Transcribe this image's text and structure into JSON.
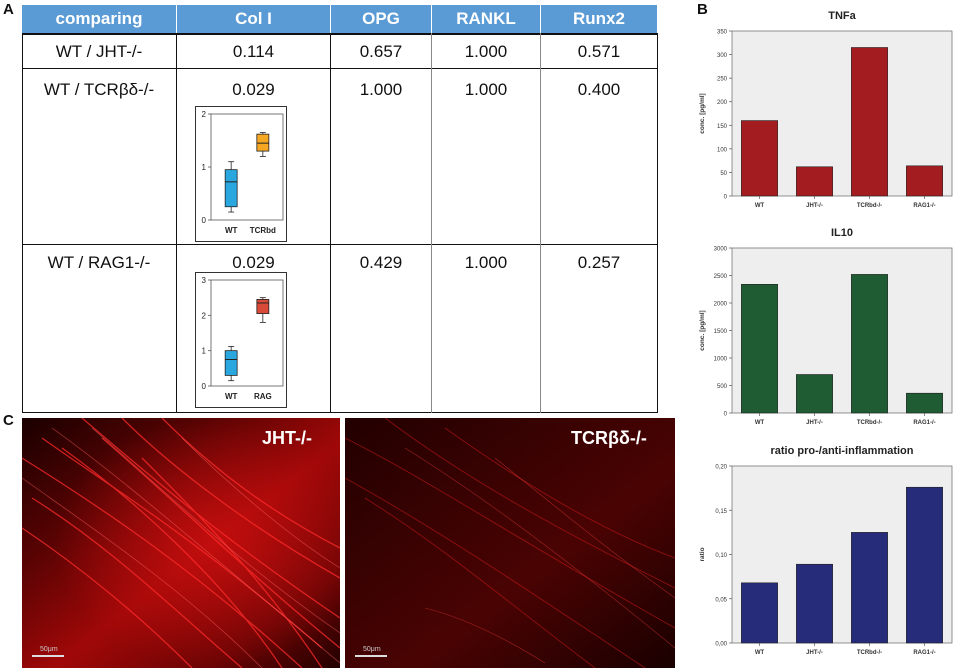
{
  "panels": {
    "a": "A",
    "b": "B",
    "c": "C"
  },
  "table": {
    "headers": [
      "comparing",
      "Col I",
      "OPG",
      "RANKL",
      "Runx2"
    ],
    "rows": [
      {
        "comparing": "WT / JHT-/-",
        "col1": "0.114",
        "opg": "0.657",
        "rankl": "1.000",
        "runx2": "0.571"
      },
      {
        "comparing": "WT / TCRβδ-/-",
        "col1": "0.029",
        "opg": "1.000",
        "rankl": "1.000",
        "runx2": "0.400"
      },
      {
        "comparing": "WT / RAG1-/-",
        "col1": "0.029",
        "opg": "0.429",
        "rankl": "1.000",
        "runx2": "0.257"
      }
    ]
  },
  "insets": [
    {
      "categories": [
        "WT",
        "TCRbd"
      ],
      "yticks": [
        "0",
        "1",
        "2"
      ],
      "ymax": 2,
      "boxes": [
        {
          "min": 0.15,
          "q1": 0.25,
          "median": 0.72,
          "q3": 0.95,
          "max": 1.1,
          "color": "#2aa7df"
        },
        {
          "min": 1.2,
          "q1": 1.3,
          "median": 1.45,
          "q3": 1.62,
          "max": 1.65,
          "color": "#f5a623"
        }
      ]
    },
    {
      "categories": [
        "WT",
        "RAG"
      ],
      "yticks": [
        "0",
        "1",
        "2",
        "3"
      ],
      "ymax": 3,
      "boxes": [
        {
          "min": 0.15,
          "q1": 0.3,
          "median": 0.75,
          "q3": 1.0,
          "max": 1.12,
          "color": "#2aa7df"
        },
        {
          "min": 1.8,
          "q1": 2.05,
          "median": 2.35,
          "q3": 2.45,
          "max": 2.5,
          "color": "#d94a38"
        }
      ]
    }
  ],
  "micrographs": [
    {
      "label": "JHT-/-",
      "scale": "50μm"
    },
    {
      "label": "TCRβδ-/-",
      "scale": "50μm"
    }
  ],
  "chart_data": [
    {
      "type": "bar",
      "title": "TNFa",
      "ylabel": "conc. [pg/ml]",
      "categories": [
        "WT",
        "JHT-/-",
        "TCRbd-/-",
        "RAG1-/-"
      ],
      "values": [
        160,
        62,
        315,
        64
      ],
      "ylim": [
        0,
        350
      ],
      "yticks": [
        "0",
        "50",
        "100",
        "150",
        "200",
        "250",
        "300",
        "350"
      ],
      "tickvals": [
        0,
        50,
        100,
        150,
        200,
        250,
        300,
        350
      ],
      "color": "#a31c1f"
    },
    {
      "type": "bar",
      "title": "IL10",
      "ylabel": "conc. [pg/ml]",
      "categories": [
        "WT",
        "JHT-/-",
        "TCRbd-/-",
        "RAG1-/-"
      ],
      "values": [
        2340,
        700,
        2520,
        360
      ],
      "ylim": [
        0,
        3000
      ],
      "yticks": [
        "0",
        "500",
        "1000",
        "1500",
        "2000",
        "2500",
        "3000"
      ],
      "tickvals": [
        0,
        500,
        1000,
        1500,
        2000,
        2500,
        3000
      ],
      "color": "#1f5c34"
    },
    {
      "type": "bar",
      "title": "ratio pro-/anti-inflammation",
      "ylabel": "ratio",
      "categories": [
        "WT",
        "JHT-/-",
        "TCRbd-/-",
        "RAG1-/-"
      ],
      "values": [
        0.068,
        0.089,
        0.125,
        0.176
      ],
      "ylim": [
        0,
        0.2
      ],
      "yticks": [
        "0,00",
        "0,05",
        "0,10",
        "0,15",
        "0,20"
      ],
      "tickvals": [
        0,
        0.05,
        0.1,
        0.15,
        0.2
      ],
      "color": "#262b7a"
    }
  ]
}
